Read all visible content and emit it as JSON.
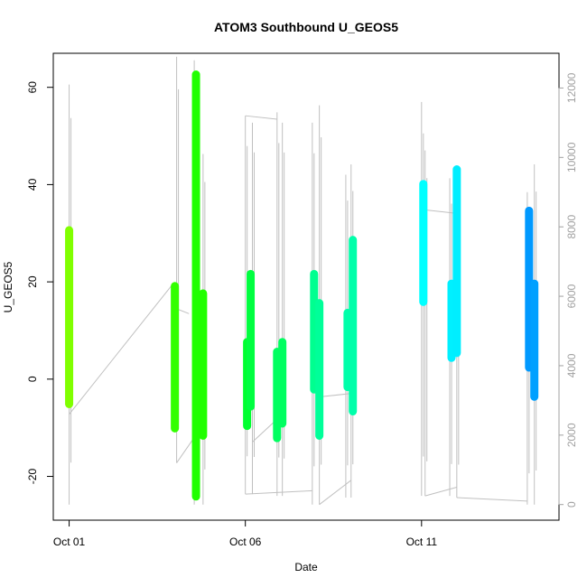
{
  "chart_data": {
    "type": "scatter",
    "title": "ATOM3 Southbound U_GEOS5",
    "xlabel": "Date",
    "ylabel": "U_GEOS5",
    "x_ticks": [
      {
        "day": 1,
        "label": "Oct 01"
      },
      {
        "day": 6,
        "label": "Oct 06"
      },
      {
        "day": 11,
        "label": "Oct 11"
      }
    ],
    "xlim_days": [
      0.55,
      14.9
    ],
    "ylim": [
      -29,
      67
    ],
    "y_ticks": [
      -20,
      0,
      20,
      40,
      60
    ],
    "y2lim": [
      -450,
      13000
    ],
    "y2_ticks": [
      0,
      2000,
      4000,
      6000,
      8000,
      10000,
      12000
    ],
    "y2_label_color": "#a0a0a0",
    "altitude_color": "#c0c0c0",
    "altitude_segments": [
      {
        "day": 1.0,
        "low": 0,
        "high": 12100
      },
      {
        "day": 4.05,
        "low": 1200,
        "high": 12900
      },
      {
        "day": 4.55,
        "low": 0,
        "high": 12800
      },
      {
        "day": 4.8,
        "low": 0,
        "high": 10100
      },
      {
        "day": 6.0,
        "low": 300,
        "high": 11200
      },
      {
        "day": 6.2,
        "low": 300,
        "high": 11000
      },
      {
        "day": 6.9,
        "low": 250,
        "high": 11300
      },
      {
        "day": 7.05,
        "low": 250,
        "high": 11000
      },
      {
        "day": 7.9,
        "low": 0,
        "high": 11000
      },
      {
        "day": 8.1,
        "low": 0,
        "high": 11500
      },
      {
        "day": 8.85,
        "low": 200,
        "high": 9500
      },
      {
        "day": 9.0,
        "low": 200,
        "high": 9800
      },
      {
        "day": 11.0,
        "low": 250,
        "high": 11600
      },
      {
        "day": 11.1,
        "low": 250,
        "high": 10200
      },
      {
        "day": 11.8,
        "low": 250,
        "high": 9400
      },
      {
        "day": 12.0,
        "low": 200,
        "high": 9700
      },
      {
        "day": 14.0,
        "low": 0,
        "high": 9000
      },
      {
        "day": 14.2,
        "low": 0,
        "high": 9800
      }
    ],
    "altitude_connectors": [
      [
        [
          1.0,
          2600
        ],
        [
          3.9,
          6300
        ]
      ],
      [
        [
          3.9,
          5700
        ],
        [
          4.4,
          5500
        ]
      ],
      [
        [
          4.05,
          1200
        ],
        [
          4.8,
          2300
        ]
      ],
      [
        [
          6.0,
          11200
        ],
        [
          6.9,
          11100
        ]
      ],
      [
        [
          6.0,
          300
        ],
        [
          7.9,
          400
        ]
      ],
      [
        [
          6.2,
          1800
        ],
        [
          7.05,
          2600
        ]
      ],
      [
        [
          8.1,
          0
        ],
        [
          9.0,
          700
        ]
      ],
      [
        [
          8.1,
          3100
        ],
        [
          9.0,
          3200
        ]
      ],
      [
        [
          11.0,
          8500
        ],
        [
          11.9,
          8400
        ]
      ],
      [
        [
          11.1,
          250
        ],
        [
          12.0,
          500
        ]
      ],
      [
        [
          12.0,
          200
        ],
        [
          14.0,
          100
        ]
      ]
    ],
    "series": [
      {
        "day": 1.0,
        "min": -5.5,
        "max": 31.0,
        "color": "#80ff00"
      },
      {
        "day": 4.0,
        "min": -10.5,
        "max": 19.5,
        "color": "#33ff00"
      },
      {
        "day": 4.6,
        "min": -24.5,
        "max": 63.0,
        "color": "#20ff00"
      },
      {
        "day": 4.8,
        "min": -12.0,
        "max": 18.0,
        "color": "#20ff00"
      },
      {
        "day": 6.05,
        "min": -10.0,
        "max": 8.0,
        "color": "#00ff30"
      },
      {
        "day": 6.15,
        "min": -6.0,
        "max": 22.0,
        "color": "#00ff40"
      },
      {
        "day": 6.9,
        "min": -12.5,
        "max": 6.0,
        "color": "#00ff60"
      },
      {
        "day": 7.05,
        "min": -9.5,
        "max": 8.0,
        "color": "#00ff60"
      },
      {
        "day": 7.95,
        "min": -2.5,
        "max": 22.0,
        "color": "#00ff90"
      },
      {
        "day": 8.1,
        "min": -12.0,
        "max": 16.0,
        "color": "#00ff99"
      },
      {
        "day": 8.9,
        "min": -2.0,
        "max": 14.0,
        "color": "#00ffaa"
      },
      {
        "day": 9.05,
        "min": -7.0,
        "max": 29.0,
        "color": "#00ffaa"
      },
      {
        "day": 11.05,
        "min": 15.5,
        "max": 40.5,
        "color": "#00ffff"
      },
      {
        "day": 11.85,
        "min": 4.0,
        "max": 20.0,
        "color": "#00f0ff"
      },
      {
        "day": 12.0,
        "min": 5.0,
        "max": 43.5,
        "color": "#00eeff"
      },
      {
        "day": 14.05,
        "min": 2.0,
        "max": 35.0,
        "color": "#0099ff"
      },
      {
        "day": 14.2,
        "min": -4.0,
        "max": 20.0,
        "color": "#00a0ff"
      }
    ]
  }
}
